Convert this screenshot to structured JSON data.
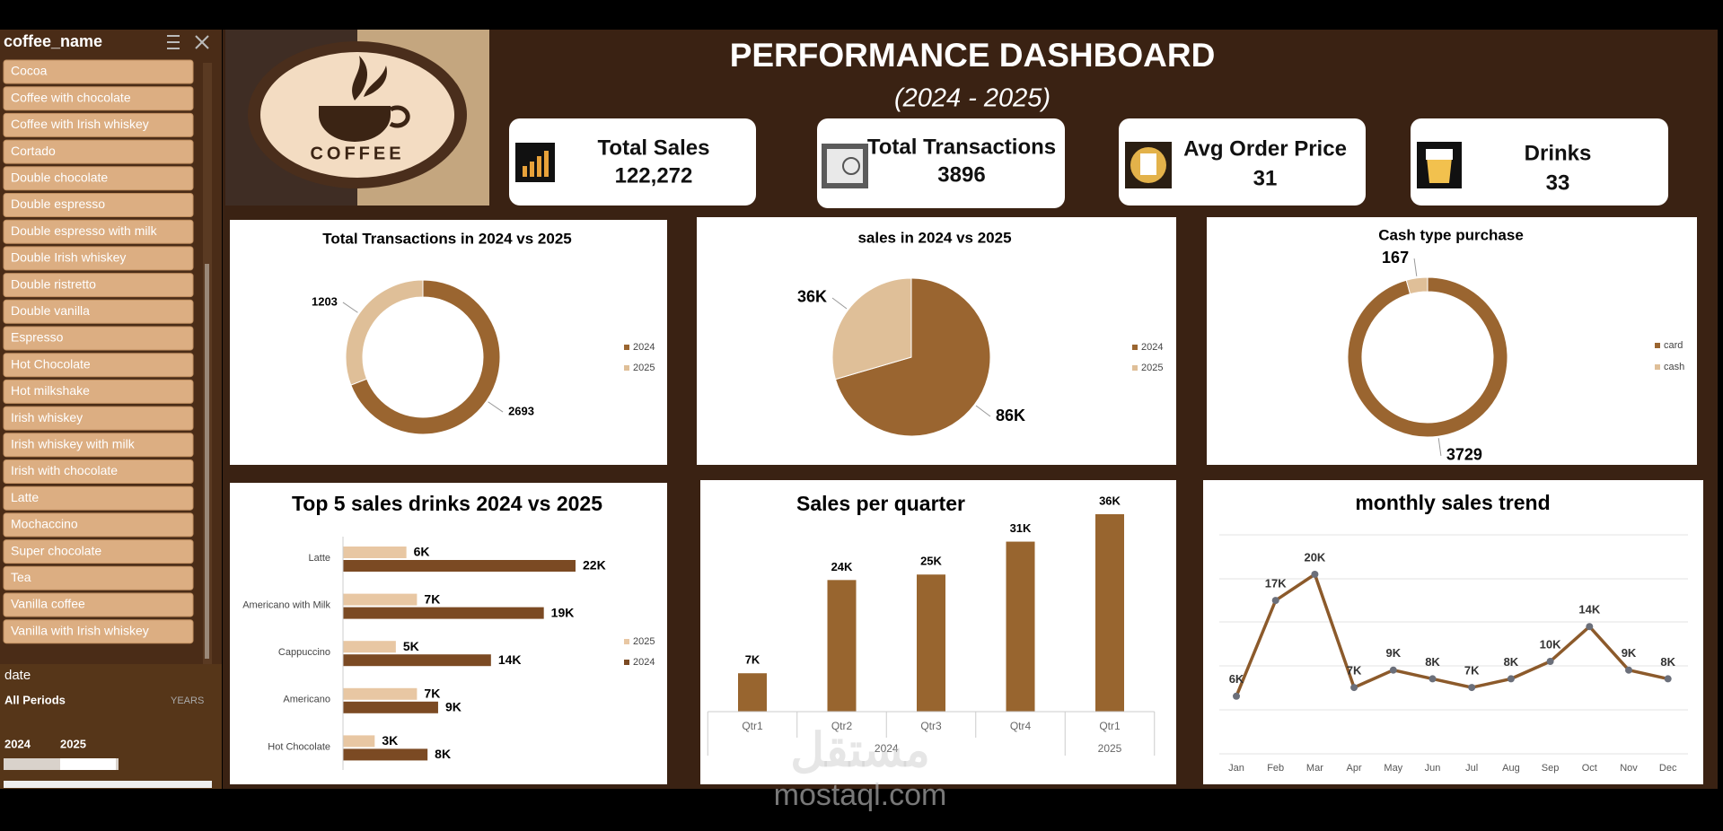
{
  "slicer": {
    "title": "coffee_name",
    "items": [
      "Cocoa",
      "Coffee with chocolate",
      "Coffee with Irish whiskey",
      "Cortado",
      "Double chocolate",
      "Double espresso",
      "Double espresso with milk",
      "Double Irish whiskey",
      "Double ristretto",
      "Double vanilla",
      "Espresso",
      "Hot Chocolate",
      "Hot milkshake",
      "Irish whiskey",
      "Irish whiskey with milk",
      "Irish with chocolate",
      "Latte",
      "Mochaccino",
      "Super chocolate",
      "Tea",
      "Vanilla coffee",
      "Vanilla with Irish whiskey"
    ]
  },
  "date_slicer": {
    "title": "date",
    "period": "All Periods",
    "level": "YEARS",
    "years": [
      "2024",
      "2025"
    ]
  },
  "logo": {
    "text": "COFFEE"
  },
  "header": {
    "title": "PERFORMANCE DASHBOARD",
    "subtitle": "(2024 - 2025)"
  },
  "kpis": [
    {
      "label": "Total Sales",
      "value": "122,272"
    },
    {
      "label": "Total Transactions",
      "value": "3896"
    },
    {
      "label": "Avg Order Price",
      "value": "31"
    },
    {
      "label": "Drinks",
      "value": "33"
    }
  ],
  "chart_data": [
    {
      "type": "donut",
      "title": "Total Transactions in 2024 vs 2025",
      "categories": [
        "2024",
        "2025"
      ],
      "values": [
        2693,
        1203
      ],
      "colors": [
        "#9a6530",
        "#dfbf98"
      ]
    },
    {
      "type": "pie",
      "title": "sales in 2024 vs 2025",
      "categories": [
        "2024",
        "2025"
      ],
      "values": [
        86000,
        36000
      ],
      "value_labels": [
        "86K",
        "36K"
      ],
      "colors": [
        "#9a6530",
        "#dfbf98"
      ]
    },
    {
      "type": "donut",
      "title": "Cash type purchase",
      "categories": [
        "card",
        "cash"
      ],
      "values": [
        3729,
        167
      ],
      "colors": [
        "#9a6530",
        "#dfbf98"
      ]
    },
    {
      "type": "hbar",
      "title": "Top 5 sales drinks 2024 vs 2025",
      "categories": [
        "Latte",
        "Americano with Milk",
        "Cappuccino",
        "Americano",
        "Hot Chocolate"
      ],
      "series": [
        {
          "name": "2025",
          "color": "#e8c7a3",
          "values": [
            6000,
            7000,
            5000,
            7000,
            3000
          ],
          "value_labels": [
            "6K",
            "7K",
            "5K",
            "7K",
            "3K"
          ]
        },
        {
          "name": "2024",
          "color": "#7b4a23",
          "values": [
            22000,
            19000,
            14000,
            9000,
            8000
          ],
          "value_labels": [
            "22K",
            "19K",
            "14K",
            "9K",
            "8K"
          ]
        }
      ]
    },
    {
      "type": "bar",
      "title": "Sales per quarter",
      "categories": [
        "Qtr1",
        "Qtr2",
        "Qtr3",
        "Qtr4",
        "Qtr1"
      ],
      "category_years": [
        "2024",
        "2024",
        "2024",
        "2024",
        "2025"
      ],
      "values": [
        7000,
        24000,
        25000,
        31000,
        36000
      ],
      "value_labels": [
        "7K",
        "24K",
        "25K",
        "31K",
        "36K"
      ],
      "color": "#98652f"
    },
    {
      "type": "line",
      "title": "monthly sales trend",
      "categories": [
        "Jan",
        "Feb",
        "Mar",
        "Apr",
        "May",
        "Jun",
        "Jul",
        "Aug",
        "Sep",
        "Oct",
        "Nov",
        "Dec"
      ],
      "values": [
        6000,
        17000,
        20000,
        7000,
        9000,
        8000,
        7000,
        8000,
        10000,
        14000,
        9000,
        8000
      ],
      "value_labels": [
        "6K",
        "17K",
        "20K",
        "7K",
        "9K",
        "8K",
        "7K",
        "8K",
        "10K",
        "14K",
        "9K",
        "8K"
      ],
      "color": "#8c5a2b",
      "marker_color": "#6b6f7a"
    }
  ],
  "watermark": {
    "arabic": "مستقل",
    "site": "mostaql.com"
  }
}
